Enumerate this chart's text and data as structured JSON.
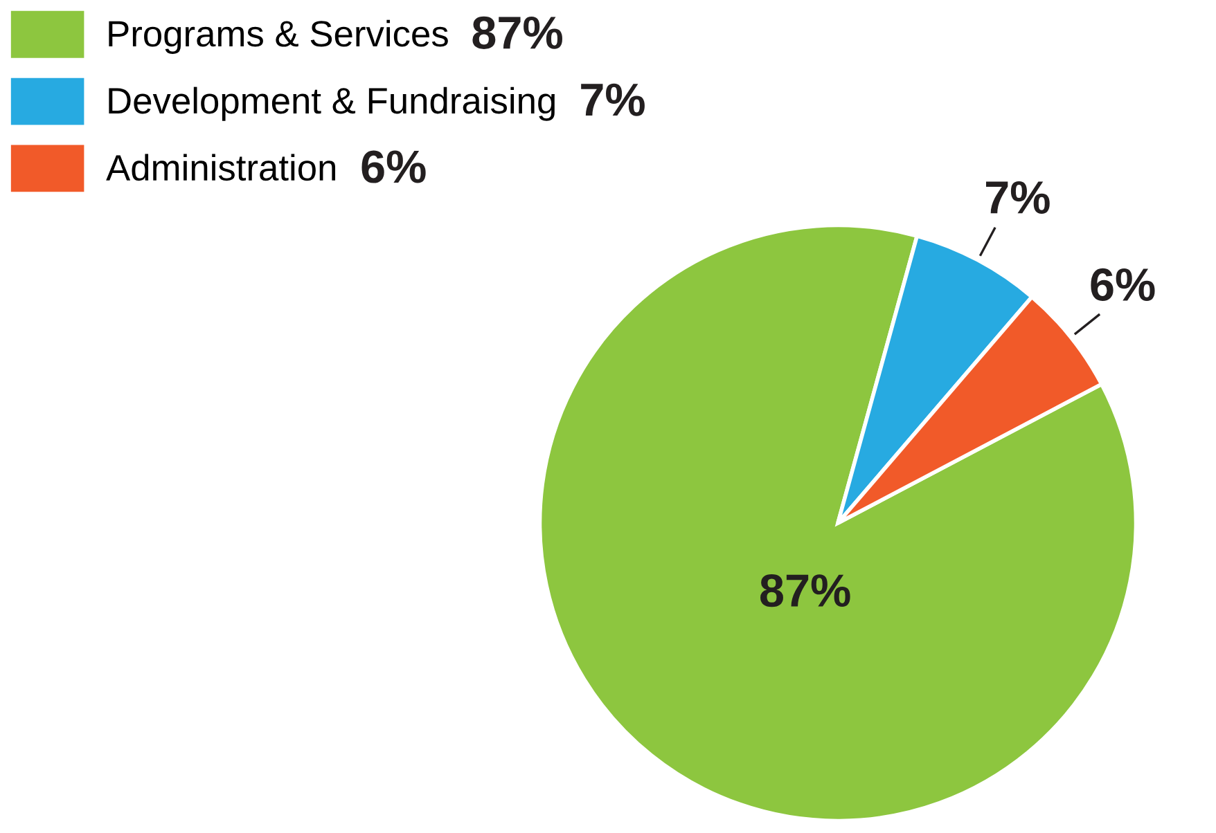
{
  "chart_data": {
    "type": "pie",
    "categories": [
      "Programs & Services",
      "Development & Fundraising",
      "Administration"
    ],
    "values": [
      87,
      7,
      6
    ],
    "colors": [
      "#8dc63f",
      "#27aae1",
      "#f15a29"
    ],
    "value_labels": [
      "87%",
      "7%",
      "6%"
    ],
    "legend": "top left"
  }
}
